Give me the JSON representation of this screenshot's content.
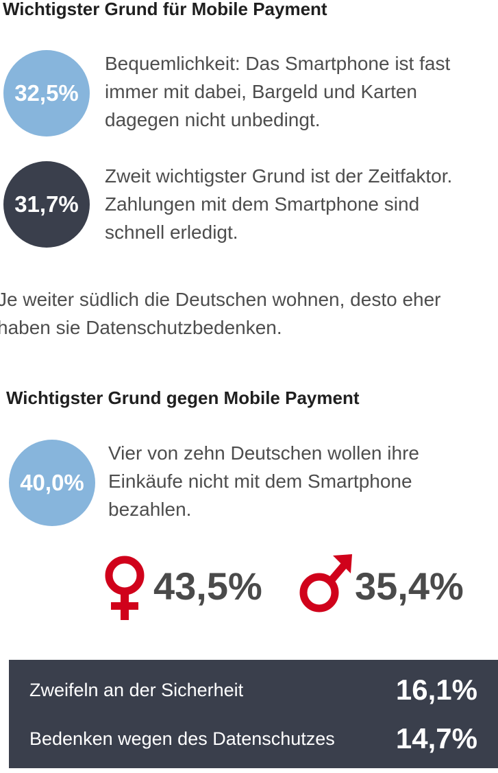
{
  "section_pro": {
    "heading": "Wichtigster Grund für  Mobile Payment",
    "items": [
      {
        "percent": "32,5%",
        "lines": [
          "Bequemlichkeit: Das Smartphone ist fast",
          "immer mit dabei, Bargeld und Karten",
          "dagegen nicht unbedingt."
        ]
      },
      {
        "percent": "31,7%",
        "lines": [
          "Zweit wichtigster Grund ist der Zeitfaktor.",
          "Zahlungen mit dem Smartphone sind",
          "schnell erledigt."
        ]
      }
    ]
  },
  "note": {
    "lines": [
      "Je weiter südlich die Deutschen wohnen, desto eher",
      "haben sie Datenschutzbedenken."
    ]
  },
  "section_contra": {
    "heading": "Wichtigster Grund gegen Mobile Payment",
    "item": {
      "percent": "40,0%",
      "lines": [
        "Vier von zehn Deutschen wollen ihre",
        "Einkäufe nicht mit dem Smartphone",
        "bezahlen."
      ]
    },
    "gender": {
      "female_percent": "43,5%",
      "male_percent": "35,4%",
      "female_icon": "female-symbol-icon",
      "male_icon": "male-symbol-icon"
    }
  },
  "reasons_box": {
    "rows": [
      {
        "label": "Zweifeln an der Sicherheit",
        "value": "16,1%"
      },
      {
        "label": "Bedenken wegen des Datenschutzes",
        "value": "14,7%"
      }
    ]
  },
  "colors": {
    "light_blue": "#87b5dc",
    "dark_slate": "#3a3f4c",
    "accent_red": "#d0021b",
    "text_gray": "#4d4d4d"
  }
}
